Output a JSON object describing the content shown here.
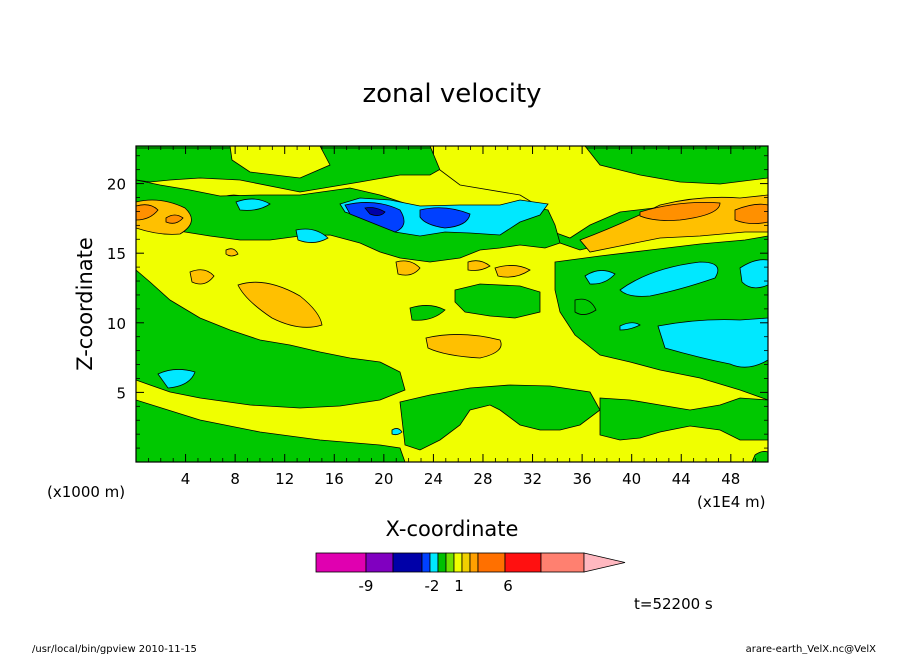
{
  "chart_data": {
    "type": "heatmap",
    "title": "zonal velocity",
    "xlabel": "X-coordinate",
    "ylabel": "Z-coordinate",
    "x_unit": "(x1E4 m)",
    "y_unit": "(x1000 m)",
    "x_ticks": [
      4,
      8,
      12,
      16,
      20,
      24,
      28,
      32,
      36,
      40,
      44,
      48
    ],
    "y_ticks": [
      5,
      10,
      15,
      20
    ],
    "xlim": [
      0,
      51
    ],
    "ylim": [
      0,
      22.7
    ],
    "colorbar": {
      "colors": [
        "#e000b0",
        "#8000c0",
        "#0000a8",
        "#0040ff",
        "#00e8ff",
        "#00c000",
        "#70e000",
        "#f0ff00",
        "#f0d000",
        "#ffa000",
        "#ff7000",
        "#ff1010",
        "#ff8070",
        "#ffb8c0"
      ],
      "tick_labels": [
        "-9",
        "-2",
        "1",
        "6"
      ],
      "tick_values": [
        -9,
        -2,
        1,
        6
      ]
    },
    "regions": [
      {
        "label": "band",
        "value": -3,
        "color": "#00c000"
      },
      {
        "label": "band",
        "value": 0,
        "color": "#f0ff00"
      },
      {
        "label": "band",
        "value": 2,
        "color": "#ffc000"
      },
      {
        "label": "band",
        "value": 3,
        "color": "#ff9000"
      },
      {
        "label": "band",
        "value": -5,
        "color": "#00e8ff"
      },
      {
        "label": "band",
        "value": -7,
        "color": "#0000a8"
      }
    ],
    "annotation_time": "t=52200 s"
  },
  "footer": {
    "left": "/usr/local/bin/gpview  2010-11-15",
    "right": "arare-earth_VelX.nc@VelX"
  },
  "colors": {
    "green": "#00c800",
    "yellow": "#f0ff00",
    "orange_light": "#ffc000",
    "orange": "#ff9000",
    "cyan": "#00e8ff",
    "blue": "#0000a8",
    "blue_mid": "#0040ff"
  }
}
